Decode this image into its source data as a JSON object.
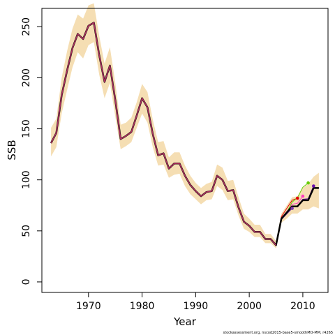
{
  "chart_data": {
    "type": "line",
    "xlabel": "Year",
    "ylabel": "SSB",
    "xlim": [
      1961.3,
      2014.7
    ],
    "ylim": [
      -10.3,
      268
    ],
    "x_ticks": [
      1970,
      1980,
      1990,
      2000,
      2010
    ],
    "y_ticks": [
      0,
      50,
      100,
      150,
      200,
      250
    ],
    "years": [
      1963,
      1964,
      1965,
      1966,
      1967,
      1968,
      1969,
      1970,
      1971,
      1972,
      1973,
      1974,
      1975,
      1976,
      1977,
      1978,
      1979,
      1980,
      1981,
      1982,
      1983,
      1984,
      1985,
      1986,
      1987,
      1988,
      1989,
      1990,
      1991,
      1992,
      1993,
      1994,
      1995,
      1996,
      1997,
      1998,
      1999,
      2000,
      2001,
      2002,
      2003,
      2004,
      2005,
      2006,
      2007,
      2008,
      2009,
      2010,
      2011,
      2012,
      2013
    ],
    "ssb": [
      136,
      146,
      183,
      207,
      229,
      243,
      238,
      251,
      254,
      222,
      196,
      212,
      178,
      140,
      143,
      147,
      163,
      180,
      171,
      145,
      124,
      126,
      111,
      116,
      116,
      104,
      95,
      89,
      84,
      88,
      89,
      104,
      100,
      89,
      90,
      73,
      59,
      55,
      49,
      49,
      42,
      42,
      36,
      62,
      68,
      74,
      74,
      80,
      80,
      92,
      92
    ],
    "ci_lower": [
      123,
      132,
      165,
      188,
      210,
      225,
      219,
      232,
      235,
      203,
      180,
      195,
      162,
      130,
      133,
      137,
      151,
      165,
      156,
      132,
      114,
      115,
      102,
      105,
      106,
      94,
      86,
      81,
      76,
      80,
      81,
      94,
      90,
      80,
      81,
      65,
      52,
      49,
      44,
      44,
      38,
      38,
      33,
      58,
      62,
      67,
      67,
      71,
      71,
      74,
      72
    ],
    "ci_upper": [
      151,
      160,
      200,
      226,
      248,
      262,
      258,
      271,
      273,
      241,
      214,
      230,
      195,
      154,
      156,
      161,
      176,
      194,
      186,
      159,
      137,
      138,
      122,
      127,
      127,
      114,
      104,
      97,
      92,
      96,
      98,
      115,
      112,
      99,
      100,
      83,
      67,
      62,
      56,
      56,
      47,
      47,
      40,
      67,
      75,
      83,
      84,
      92,
      96,
      103,
      107
    ],
    "retro_peels": [
      {
        "end_year": 2008,
        "end_value": 72,
        "color": "#7c3aad"
      },
      {
        "end_year": 2009,
        "end_value": 82,
        "color": "#e00000"
      },
      {
        "end_year": 2010,
        "end_value": 84,
        "color": "#ff40c0"
      },
      {
        "end_year": 2011,
        "end_value": 97,
        "color": "#66cc00"
      },
      {
        "end_year": 2012,
        "end_value": 94,
        "color": "#6a0dad"
      }
    ],
    "colors": {
      "ci_band": "#f5deb3",
      "main_line": "#000000",
      "overlay_line": "#b03060"
    },
    "grid": false,
    "legend": "none",
    "footer": "stockassessment.org, nscod2015-base5-smoothMO-MM, r4265"
  }
}
